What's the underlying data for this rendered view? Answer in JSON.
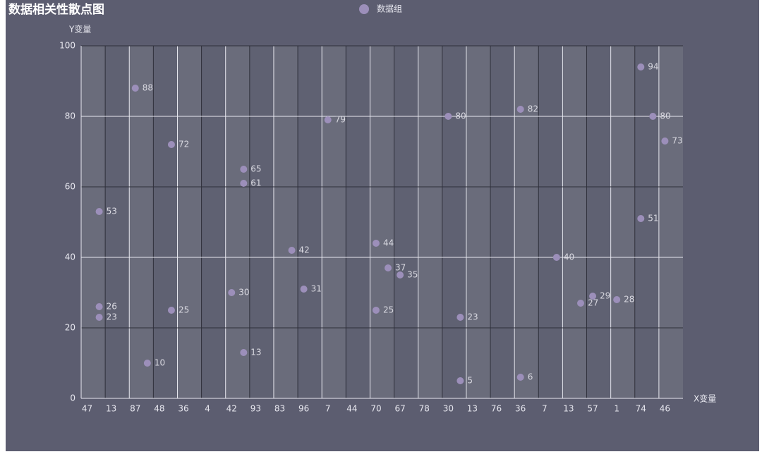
{
  "chart_data": {
    "type": "scatter",
    "title": "数据相关性散点图",
    "x_label": "X变量",
    "y_label": "Y变量",
    "categories": [
      "47",
      null,
      "13",
      null,
      "87",
      null,
      "48",
      null,
      "36",
      null,
      "4",
      null,
      "42",
      null,
      "93",
      null,
      "83",
      null,
      "96",
      null,
      "7",
      null,
      "44",
      null,
      "70",
      null,
      "67",
      null,
      "78",
      null,
      "30",
      null,
      "13",
      null,
      "76",
      null,
      "36",
      null,
      "7",
      null,
      "13",
      null,
      "57",
      null,
      "1",
      null,
      "74",
      null,
      "46",
      null
    ],
    "series": [
      {
        "name": "数据组",
        "color": "#9c8fba",
        "x": [
          1,
          1,
          1,
          4,
          5,
          7,
          7,
          12,
          13,
          13,
          13,
          17,
          18,
          20,
          24,
          24,
          25,
          26,
          30,
          31,
          31,
          36,
          36,
          39,
          41,
          42,
          44,
          46,
          46,
          47,
          48
        ],
        "values": [
          53,
          26,
          23,
          88,
          10,
          72,
          25,
          30,
          65,
          61,
          13,
          42,
          31,
          79,
          44,
          25,
          37,
          35,
          80,
          23,
          5,
          82,
          6,
          40,
          27,
          29,
          28,
          94,
          51,
          80,
          73
        ]
      }
    ],
    "ylim": [
      0,
      100
    ],
    "yticks": [
      0,
      20,
      40,
      60,
      80,
      100
    ],
    "grid": true
  }
}
